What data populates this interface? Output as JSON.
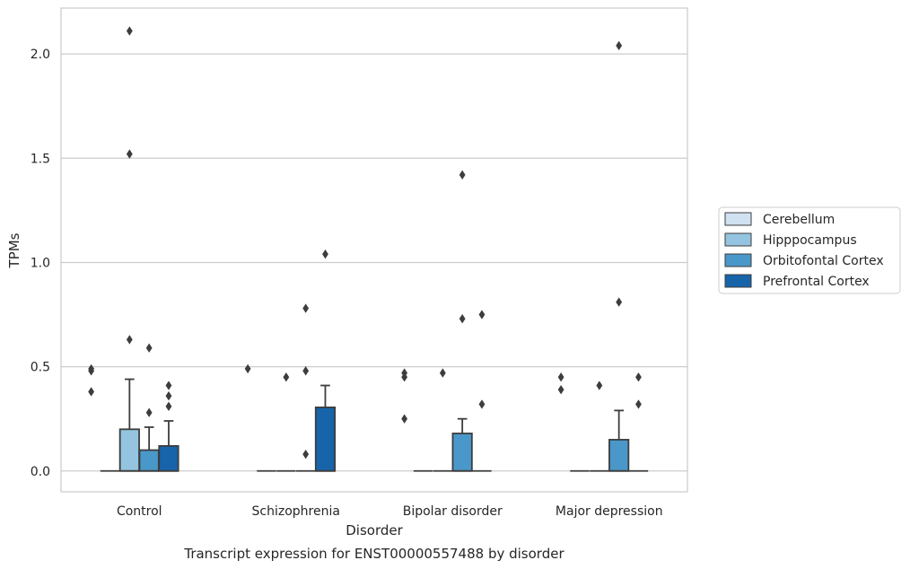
{
  "chart_data": {
    "type": "box",
    "title": "Transcript expression for ENST00000557488 by disorder",
    "xlabel": "Disorder",
    "ylabel": "TPMs",
    "ylim": [
      -0.1,
      2.22
    ],
    "yticks": [
      0.0,
      0.5,
      1.0,
      1.5,
      2.0
    ],
    "ytick_labels": [
      "0.0",
      "0.5",
      "1.0",
      "1.5",
      "2.0"
    ],
    "grid": "horizontal",
    "legend_position": "right",
    "categories": [
      "Control",
      "Schizophrenia",
      "Bipolar disorder",
      "Major depression"
    ],
    "series": [
      {
        "name": "Cerebellum",
        "color": "#d0e1f2",
        "boxes": [
          {
            "q1": 0,
            "median": 0,
            "q3": 0,
            "whisker_high": 0,
            "outliers": []
          },
          {
            "q1": 0,
            "median": 0,
            "q3": 0,
            "whisker_high": 0,
            "outliers": []
          },
          {
            "q1": 0,
            "median": 0,
            "q3": 0,
            "whisker_high": 0,
            "outliers": []
          },
          {
            "q1": 0,
            "median": 0,
            "q3": 0,
            "whisker_high": 0,
            "outliers": []
          }
        ]
      },
      {
        "name": "Hipppocampus",
        "color": "#94c4df",
        "boxes": [
          {
            "q1": 0,
            "median": 0,
            "q3": 0.2,
            "whisker_high": 0.44,
            "outliers": [
              0.63,
              1.52,
              2.11
            ]
          },
          {
            "q1": 0,
            "median": 0,
            "q3": 0,
            "whisker_high": 0,
            "outliers": [
              0.45
            ]
          },
          {
            "q1": 0,
            "median": 0,
            "q3": 0,
            "whisker_high": 0,
            "outliers": [
              0.47
            ]
          },
          {
            "q1": 0,
            "median": 0,
            "q3": 0,
            "whisker_high": 0,
            "outliers": [
              0.41
            ]
          }
        ]
      },
      {
        "name": "Orbitofontal Cortex",
        "color": "#4a98c9",
        "boxes": [
          {
            "q1": 0,
            "median": 0,
            "q3": 0.1,
            "whisker_high": 0.21,
            "outliers": [
              0.28,
              0.59
            ]
          },
          {
            "q1": 0,
            "median": 0,
            "q3": 0,
            "whisker_high": 0,
            "outliers": [
              0.08,
              0.48,
              0.78
            ]
          },
          {
            "q1": 0,
            "median": 0,
            "q3": 0.18,
            "whisker_high": 0.25,
            "outliers": [
              0.73,
              1.42
            ]
          },
          {
            "q1": 0,
            "median": 0,
            "q3": 0.15,
            "whisker_high": 0.29,
            "outliers": [
              0.81,
              2.04
            ]
          }
        ]
      },
      {
        "name": "Prefrontal Cortex",
        "color": "#1764ab",
        "boxes": [
          {
            "q1": 0,
            "median": 0,
            "q3": 0.12,
            "whisker_high": 0.24,
            "outliers": [
              0.31,
              0.36,
              0.41
            ]
          },
          {
            "q1": 0,
            "median": 0,
            "q3": 0.305,
            "whisker_high": 0.41,
            "outliers": [
              1.04
            ]
          },
          {
            "q1": 0,
            "median": 0,
            "q3": 0,
            "whisker_high": 0,
            "outliers": [
              0.32,
              0.75
            ]
          },
          {
            "q1": 0,
            "median": 0,
            "q3": 0,
            "whisker_high": 0,
            "outliers": [
              0.32,
              0.45
            ]
          }
        ]
      }
    ],
    "leading_outliers": [
      [
        0.38,
        0.48,
        0.49
      ],
      [
        0.49
      ],
      [
        0.25,
        0.45,
        0.47
      ],
      [
        0.39,
        0.45
      ]
    ]
  }
}
